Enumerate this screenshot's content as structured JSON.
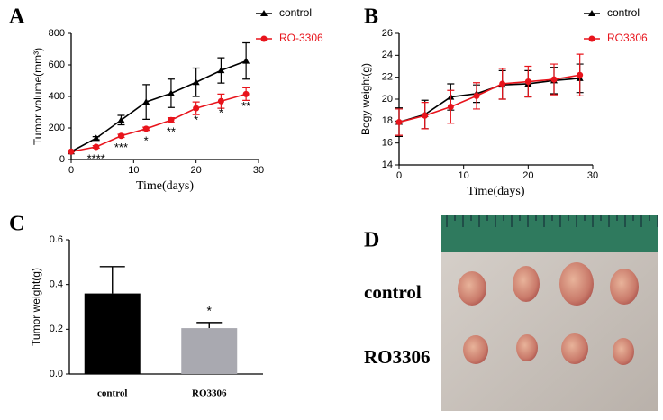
{
  "panel_labels": [
    "A",
    "B",
    "C",
    "D"
  ],
  "chart_data": [
    {
      "type": "line",
      "xlabel": "Time(days)",
      "ylabel": "Tumor volume(mm³)",
      "x": [
        0,
        4,
        8,
        12,
        16,
        20,
        24,
        28
      ],
      "xlim": [
        0,
        30
      ],
      "xticks": [
        0,
        10,
        20,
        30
      ],
      "ylim": [
        0,
        800
      ],
      "yticks": [
        0,
        200,
        400,
        600,
        800
      ],
      "series": [
        {
          "name": "control",
          "color": "#000000",
          "marker": "triangle",
          "values": [
            50,
            135,
            250,
            365,
            420,
            490,
            565,
            625
          ],
          "errors": [
            0,
            10,
            30,
            110,
            90,
            90,
            80,
            115
          ]
        },
        {
          "name": "RO-3306",
          "color": "#e8141c",
          "marker": "circle",
          "values": [
            50,
            80,
            150,
            195,
            250,
            325,
            370,
            415
          ],
          "errors": [
            0,
            8,
            10,
            10,
            15,
            40,
            45,
            40
          ]
        }
      ],
      "annotations": [
        {
          "x": 4,
          "text": "****"
        },
        {
          "x": 8,
          "text": "***"
        },
        {
          "x": 12,
          "text": "*"
        },
        {
          "x": 16,
          "text": "**"
        },
        {
          "x": 20,
          "text": "*"
        },
        {
          "x": 24,
          "text": "*"
        },
        {
          "x": 28,
          "text": "**"
        }
      ]
    },
    {
      "type": "line",
      "xlabel": "Time(days)",
      "ylabel": "Bogy weight(g)",
      "x": [
        0,
        4,
        8,
        12,
        16,
        20,
        24,
        28
      ],
      "xlim": [
        0,
        30
      ],
      "xticks": [
        0,
        10,
        20,
        30
      ],
      "ylim": [
        14,
        26
      ],
      "yticks": [
        14,
        16,
        18,
        20,
        22,
        24,
        26
      ],
      "series": [
        {
          "name": "control",
          "color": "#000000",
          "marker": "triangle",
          "values": [
            17.9,
            18.6,
            20.2,
            20.5,
            21.3,
            21.4,
            21.7,
            21.9
          ],
          "errors": [
            1.3,
            1.3,
            1.2,
            0.8,
            1.3,
            1.2,
            1.2,
            1.3
          ]
        },
        {
          "name": "RO3306",
          "color": "#e8141c",
          "marker": "circle",
          "values": [
            17.9,
            18.5,
            19.3,
            20.3,
            21.4,
            21.6,
            21.8,
            22.2
          ],
          "errors": [
            1.2,
            1.2,
            1.5,
            1.2,
            1.4,
            1.4,
            1.4,
            1.9
          ]
        }
      ]
    },
    {
      "type": "bar",
      "ylabel": "Tumor weight(g)",
      "categories": [
        "control",
        "RO3306"
      ],
      "values": [
        0.36,
        0.205
      ],
      "errors": [
        0.12,
        0.025
      ],
      "colors": [
        "#000000",
        "#a9a9b0"
      ],
      "ylim": [
        0,
        0.6
      ],
      "yticks": [
        {
          "value": 0,
          "label": "0.0"
        },
        0.2,
        0.4,
        0.6
      ],
      "annotations": [
        {
          "x": "RO3306",
          "text": "*"
        }
      ]
    }
  ],
  "photo": {
    "labels": [
      "control",
      "RO3306"
    ]
  }
}
